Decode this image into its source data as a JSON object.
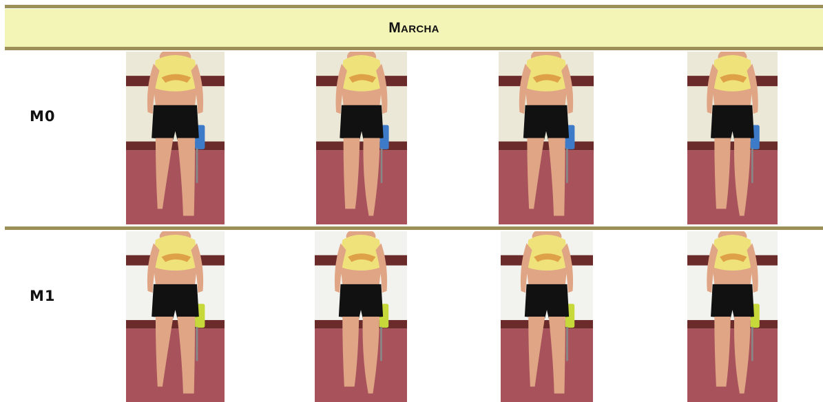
{
  "table": {
    "title": "Marcha",
    "rows": [
      {
        "label": "M0",
        "photos": [
          {
            "icon": "walking-person-photo",
            "chair": "#3d7ac8",
            "wall": "#ece8d8"
          },
          {
            "icon": "walking-person-photo",
            "chair": "#3d7ac8",
            "wall": "#ece8d8"
          },
          {
            "icon": "walking-person-photo",
            "chair": "#3d7ac8",
            "wall": "#ece8d8"
          },
          {
            "icon": "walking-person-photo",
            "chair": "#3d7ac8",
            "wall": "#ece8d8"
          }
        ]
      },
      {
        "label": "M1",
        "photos": [
          {
            "icon": "walking-person-photo",
            "chair": "#c7d83a",
            "wall": "#f2f2ef"
          },
          {
            "icon": "walking-person-photo",
            "chair": "#c7d83a",
            "wall": "#f2f2ef"
          },
          {
            "icon": "walking-person-photo",
            "chair": "#c7d83a",
            "wall": "#f2f2ef"
          },
          {
            "icon": "walking-person-photo",
            "chair": "#c7d83a",
            "wall": "#f2f2ef"
          }
        ]
      }
    ]
  },
  "colors": {
    "header_bg": "#f3f5b7",
    "rule": "#9c8f57",
    "floor": "#a8525c",
    "wall_stripe": "#6b2b2b",
    "skin": "#e0a585",
    "top": "#efe27a",
    "shorts": "#111111"
  }
}
